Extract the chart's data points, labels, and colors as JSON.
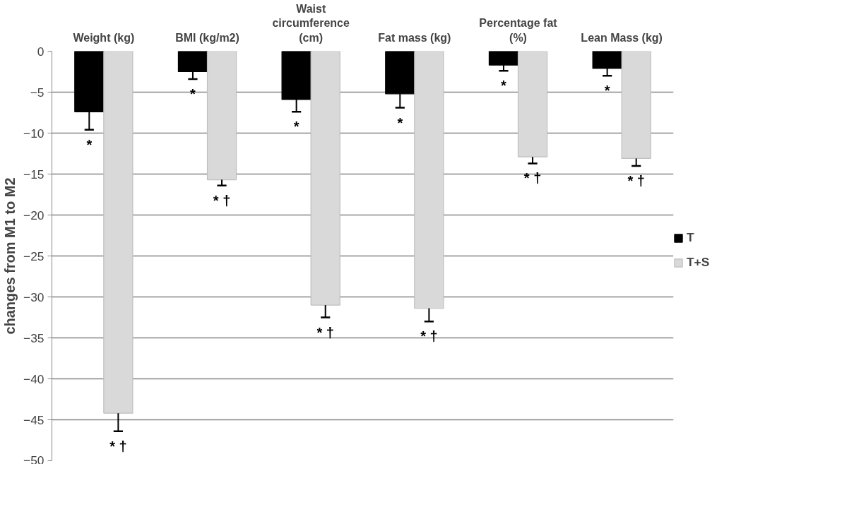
{
  "chart_data": {
    "type": "bar",
    "ylabel": "changes from M1 to M2",
    "categories": [
      "Weight (kg)",
      "BMI (kg/m2)",
      "Waist circumference (cm)",
      "Fat mass (kg)",
      "Percentage fat (%)",
      "Lean Mass (kg)"
    ],
    "series": [
      {
        "name": "T",
        "color": "#000000",
        "values": [
          -7.4,
          -2.5,
          -5.9,
          -5.2,
          -1.7,
          -2.1
        ],
        "errors": [
          [
            -9.6,
            -7.4
          ],
          [
            -3.4,
            -2.5
          ],
          [
            -7.4,
            -5.9
          ],
          [
            -6.9,
            -5.2
          ],
          [
            -2.4,
            -1.7
          ],
          [
            -3.0,
            -2.1
          ]
        ]
      },
      {
        "name": "T+S",
        "color": "#d9d9d9",
        "values": [
          -44.2,
          -15.7,
          -31.0,
          -31.4,
          -12.9,
          -13.1
        ],
        "errors": [
          [
            -46.4,
            -44.2
          ],
          [
            -16.4,
            -15.7
          ],
          [
            -32.5,
            -31.0
          ],
          [
            -33.0,
            -31.4
          ],
          [
            -13.7,
            -12.9
          ],
          [
            -14.0,
            -13.1
          ]
        ]
      }
    ],
    "ylim": [
      -50,
      0
    ],
    "yticks": [
      0,
      -5,
      -10,
      -15,
      -20,
      -25,
      -30,
      -35,
      -40,
      -45,
      -50
    ],
    "grid": "y",
    "legend": "right",
    "annotations": [
      "*",
      "* †",
      "*",
      "* †",
      "*",
      "* †",
      "*",
      "* †",
      "*",
      "* †",
      "*",
      "* †"
    ]
  }
}
